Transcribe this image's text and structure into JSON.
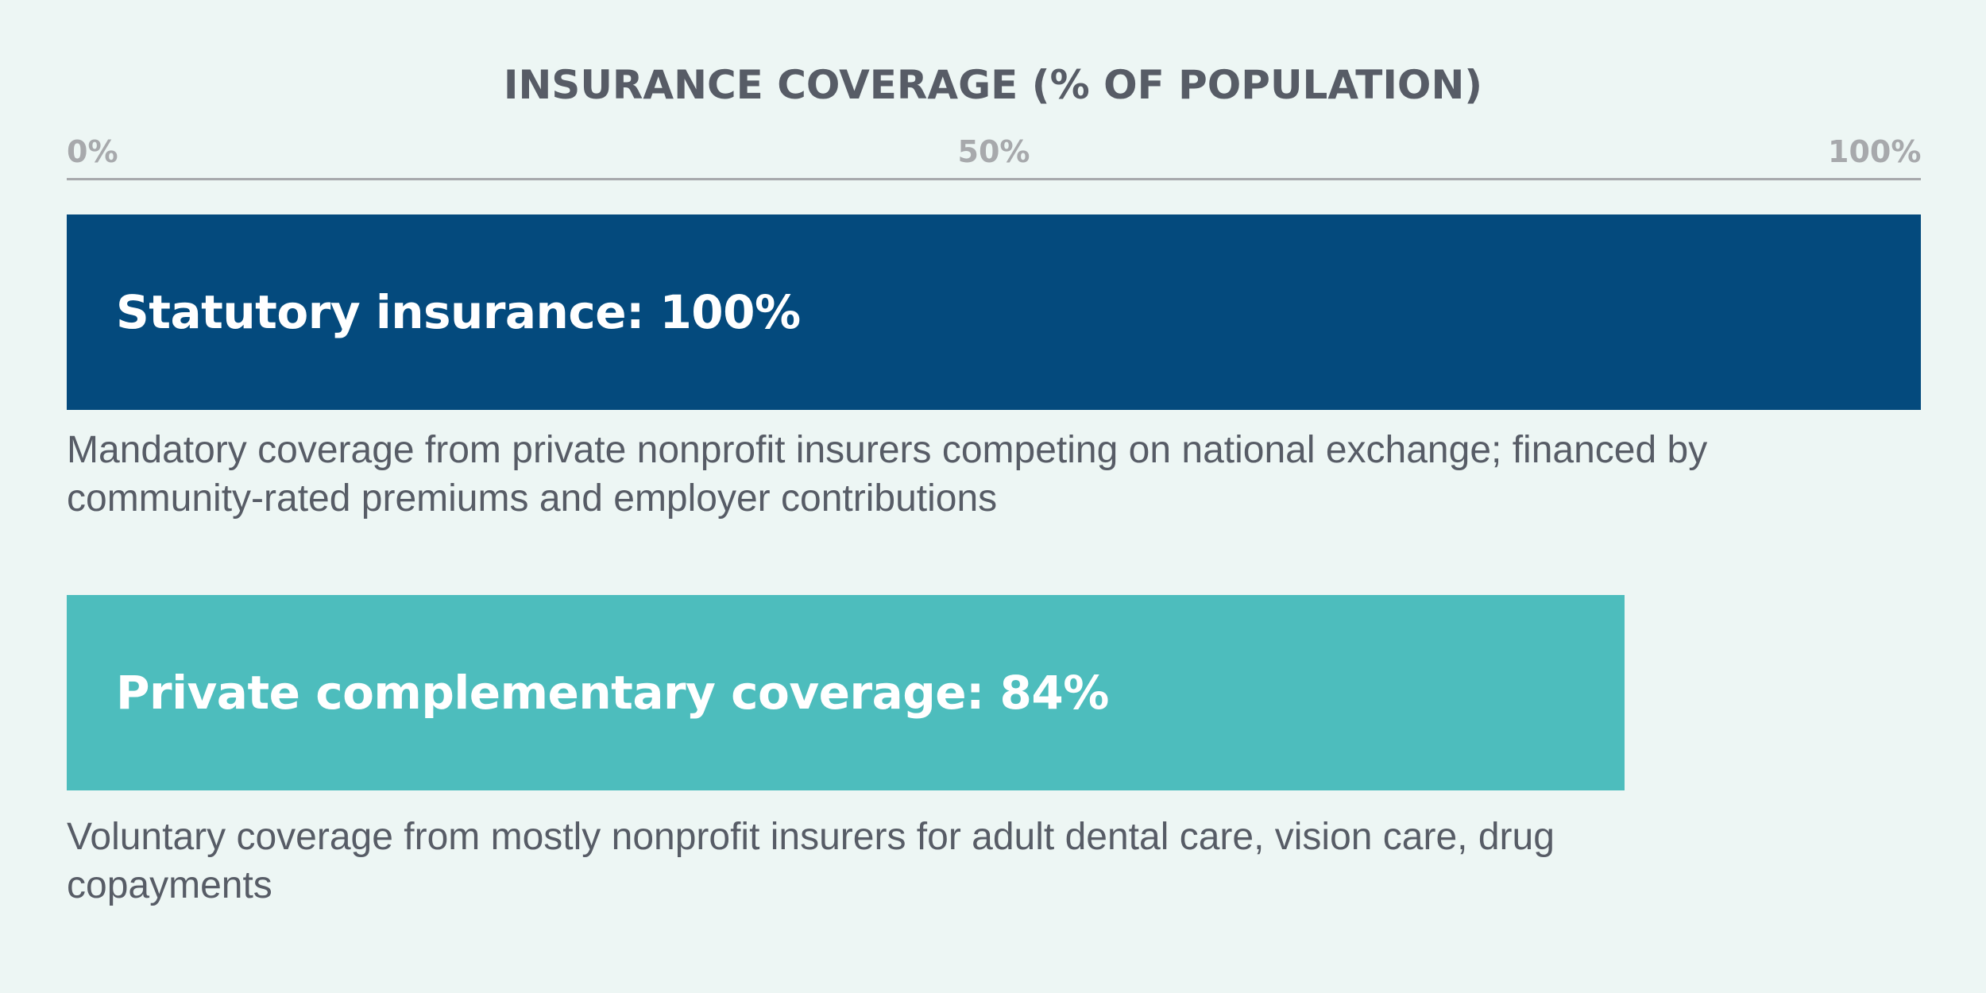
{
  "chart_data": {
    "type": "bar",
    "orientation": "horizontal",
    "title": "INSURANCE COVERAGE (% OF POPULATION)",
    "xlim": [
      0,
      100
    ],
    "x_ticks": [
      {
        "value": 0,
        "label": "0%"
      },
      {
        "value": 50,
        "label": "50%"
      },
      {
        "value": 100,
        "label": "100%"
      }
    ],
    "grid": false,
    "bars": [
      {
        "label": "Statutory insurance: 100%",
        "value": 100,
        "color": "#044a7d",
        "description": "Mandatory coverage from private nonprofit insurers competing on national exchange; financed by community-rated premiums and employer contributions"
      },
      {
        "label": "Private complementary coverage: 84%",
        "value": 84,
        "color": "#4dbdbd",
        "description": "Voluntary coverage from mostly nonprofit insurers for adult dental care, vision care, drug copayments"
      }
    ]
  }
}
